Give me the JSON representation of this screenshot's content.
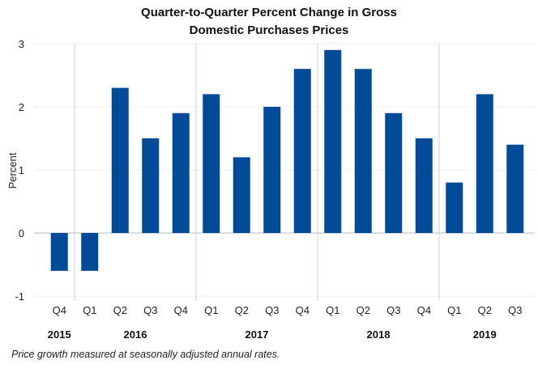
{
  "chart_data": {
    "type": "bar",
    "title": "Quarter-to-Quarter Percent Change in Gross Domestic Purchases Prices",
    "title_lines": [
      "Quarter-to-Quarter Percent Change in Gross",
      "Domestic Purchases Prices"
    ],
    "ylabel": "Percent",
    "xlabel": "",
    "ylim": [
      -1,
      3
    ],
    "yticks": [
      "3",
      "2",
      "1",
      "0",
      "-1"
    ],
    "categories": [
      "Q4",
      "Q1",
      "Q2",
      "Q3",
      "Q4",
      "Q1",
      "Q2",
      "Q3",
      "Q4",
      "Q1",
      "Q2",
      "Q3",
      "Q4",
      "Q1",
      "Q2",
      "Q3"
    ],
    "years": [
      {
        "label": "2015",
        "span": 1
      },
      {
        "label": "2016",
        "span": 4
      },
      {
        "label": "2017",
        "span": 4
      },
      {
        "label": "2018",
        "span": 4
      },
      {
        "label": "2019",
        "span": 3
      }
    ],
    "values": [
      -0.6,
      -0.6,
      2.3,
      1.5,
      1.9,
      2.2,
      1.2,
      2.0,
      2.6,
      2.9,
      2.6,
      1.9,
      1.5,
      0.8,
      2.2,
      1.4
    ],
    "bar_color": "#004b98",
    "grid": true,
    "legend": "none",
    "footnote": "Price growth  measured at seasonally adjusted annual rates."
  }
}
